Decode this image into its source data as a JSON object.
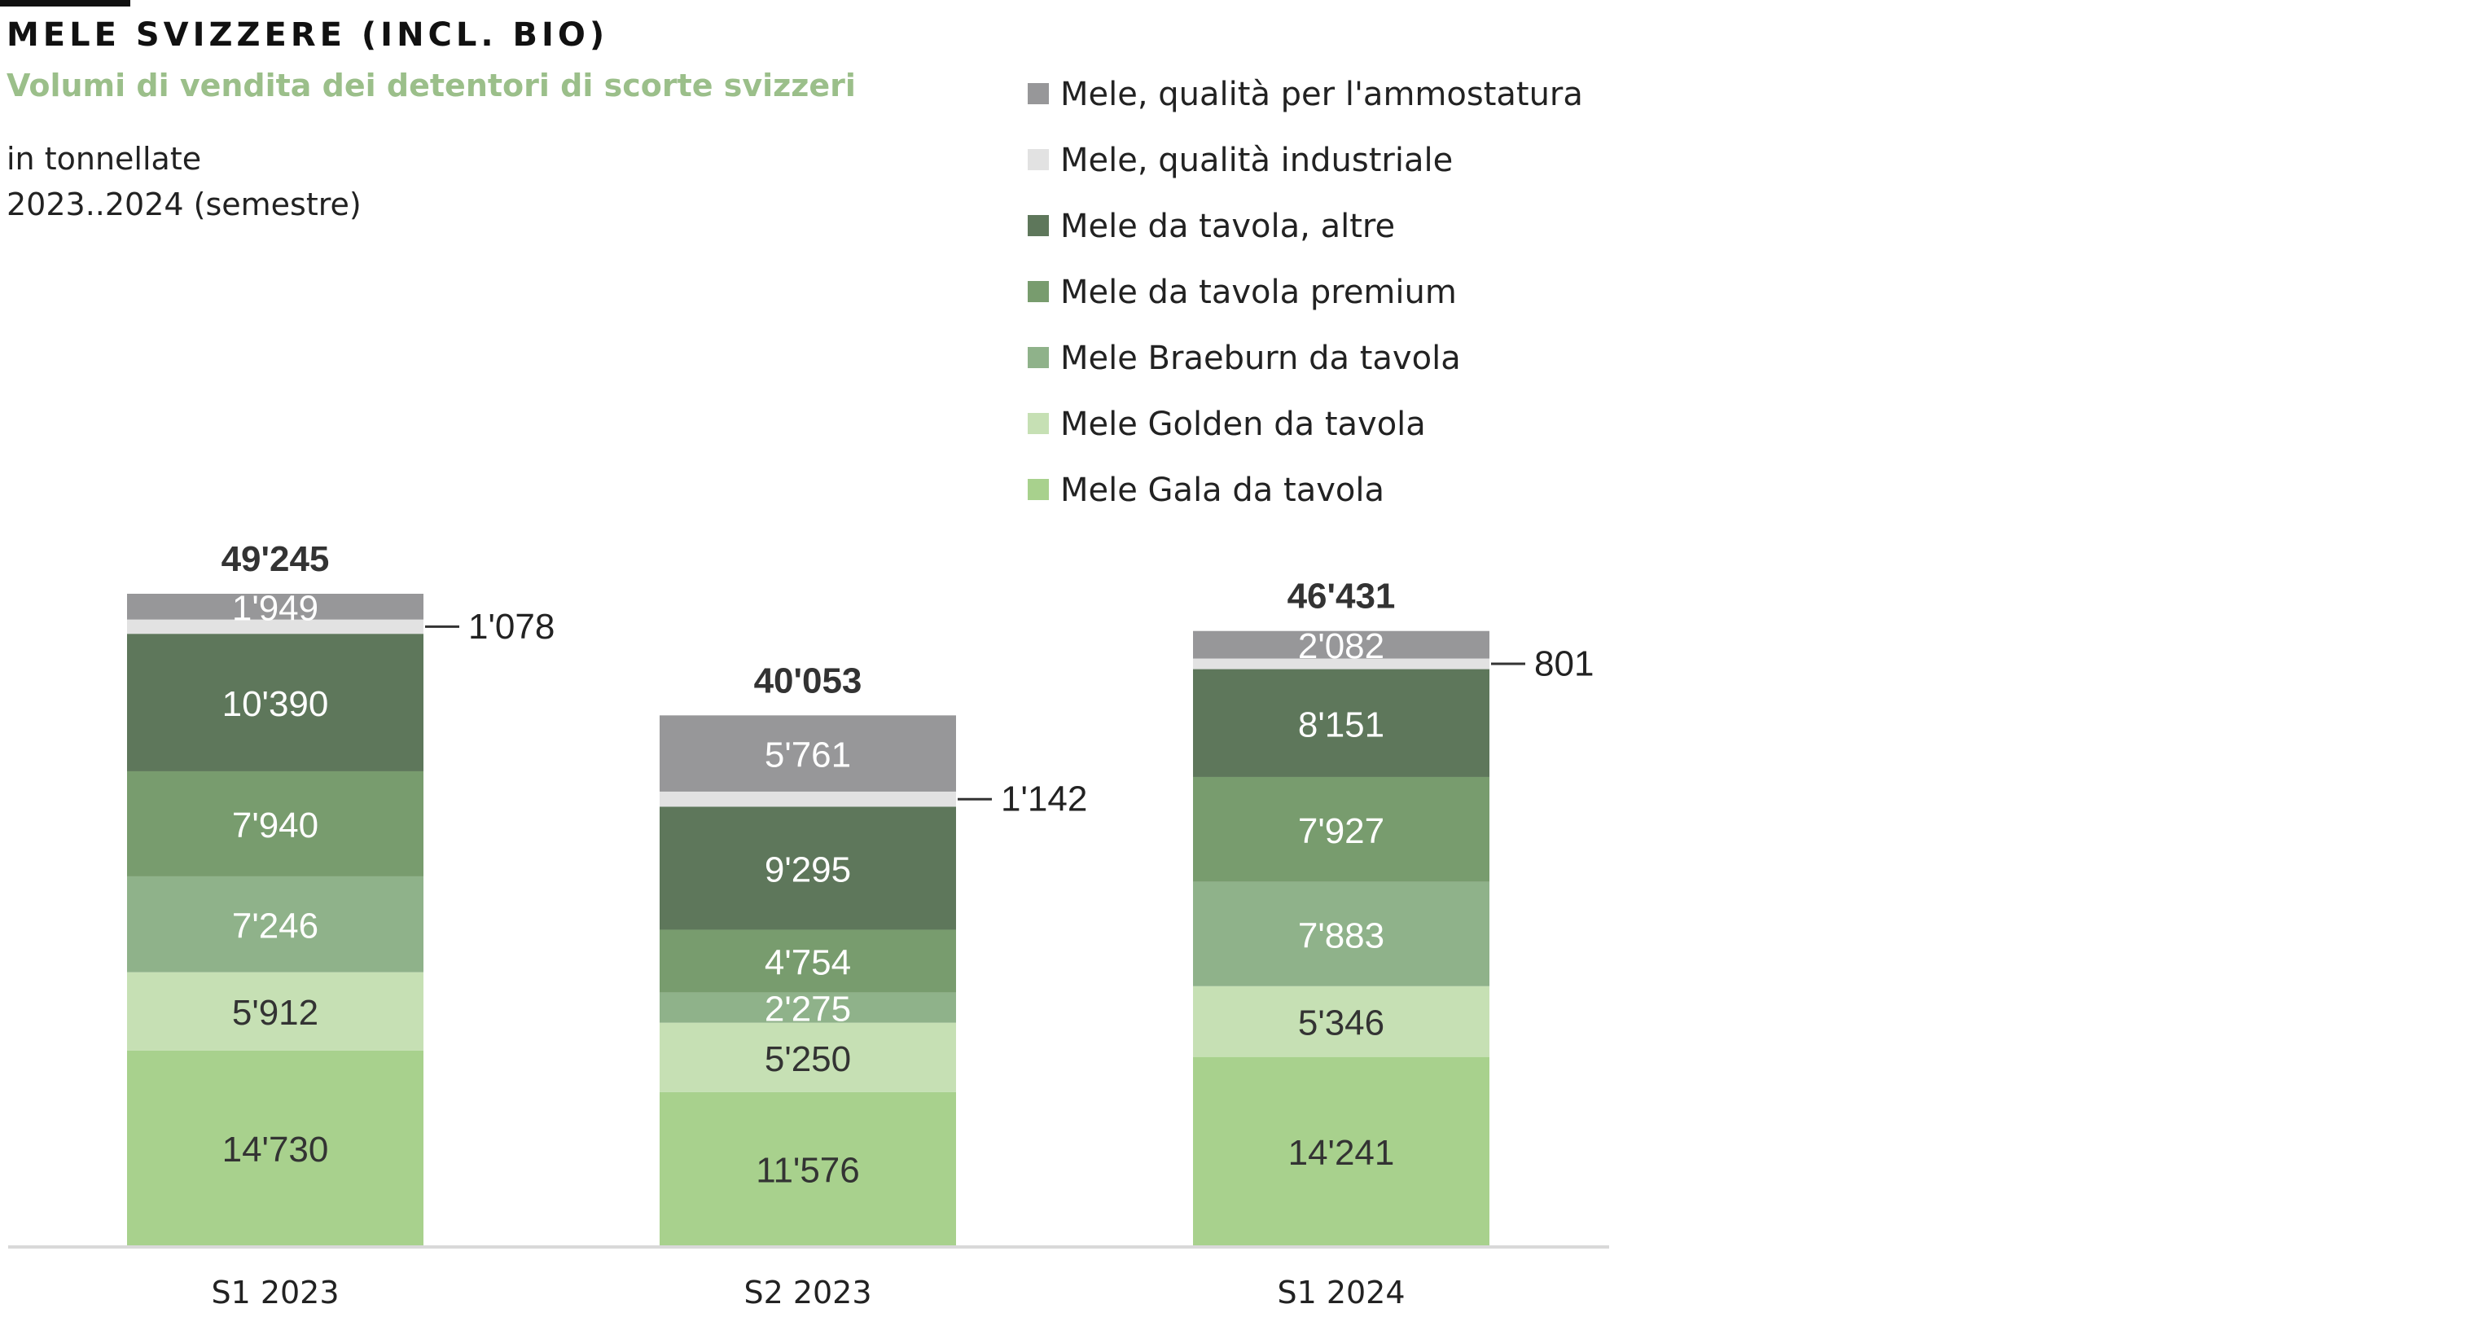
{
  "title": "MELE SVIZZERE (INCL. BIO)",
  "subtitle": "Volumi di vendita dei detentori di scorte svizzeri",
  "unit_line": "in tonnellate",
  "period_line": "2023..2024 (semestre)",
  "colors": {
    "accent_bar": "#111111",
    "subtitle": "#9bbf8a",
    "axis": "#d9d9d9"
  },
  "chart_data": {
    "type": "bar",
    "stacked": true,
    "categories": [
      "S1 2023",
      "S2 2023",
      "S1 2024"
    ],
    "totals": [
      "49'245",
      "40'053",
      "46'431"
    ],
    "legend_position": "top-right",
    "grid": false,
    "series": [
      {
        "name": "Mele Gala da tavola",
        "color": "#a8d18d",
        "text_color": "#333333",
        "values": [
          14730,
          11576,
          14241
        ],
        "labels": [
          "14'730",
          "11'576",
          "14'241"
        ],
        "label_style": "inside"
      },
      {
        "name": "Mele Golden da tavola",
        "color": "#c6e0b4",
        "text_color": "#333333",
        "values": [
          5912,
          5250,
          5346
        ],
        "labels": [
          "5'912",
          "5'250",
          "5'346"
        ],
        "label_style": "inside"
      },
      {
        "name": "Mele Braeburn da tavola",
        "color": "#8fb28a",
        "text_color": "#ffffff",
        "values": [
          7246,
          2275,
          7883
        ],
        "labels": [
          "7'246",
          "2'275",
          "7'883"
        ],
        "label_style": "inside"
      },
      {
        "name": "Mele da tavola premium",
        "color": "#789c6e",
        "text_color": "#ffffff",
        "values": [
          7940,
          4754,
          7927
        ],
        "labels": [
          "7'940",
          "4'754",
          "7'927"
        ],
        "label_style": "inside"
      },
      {
        "name": "Mele da tavola, altre",
        "color": "#5e775b",
        "text_color": "#ffffff",
        "values": [
          10390,
          9295,
          8151
        ],
        "labels": [
          "10'390",
          "9'295",
          "8'151"
        ],
        "label_style": "inside"
      },
      {
        "name": "Mele, qualità industriale",
        "color": "#e2e2e2",
        "text_color": "#222222",
        "values": [
          1078,
          1142,
          801
        ],
        "labels": [
          "1'078",
          "1'142",
          "801"
        ],
        "label_style": "callout"
      },
      {
        "name": "Mele, qualità per l'ammostatura",
        "color": "#979799",
        "text_color": "#ffffff",
        "values": [
          1949,
          5761,
          2082
        ],
        "labels": [
          "1'949",
          "5'761",
          "2'082"
        ],
        "label_style": "inside"
      }
    ]
  }
}
